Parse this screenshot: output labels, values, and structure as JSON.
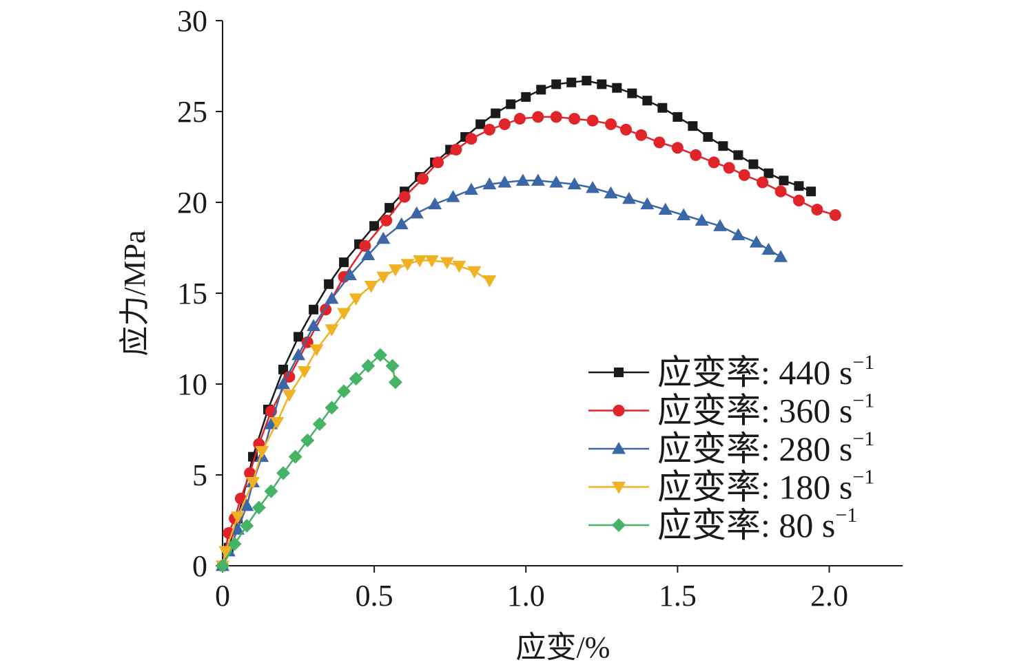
{
  "chart_data": {
    "type": "line",
    "xlabel": "应变/%",
    "ylabel": "应力/MPa",
    "xlim": [
      0,
      2.25
    ],
    "ylim": [
      0,
      30
    ],
    "xticks": [
      "0",
      "0.5",
      "1.0",
      "1.5",
      "2.0"
    ],
    "xtick_values": [
      0,
      0.5,
      1.0,
      1.5,
      2.0
    ],
    "yticks": [
      "0",
      "5",
      "10",
      "15",
      "20",
      "25",
      "30"
    ],
    "ytick_values": [
      0,
      5,
      10,
      15,
      20,
      25,
      30
    ],
    "grid": false,
    "legend_position": "bottom-right",
    "series": [
      {
        "name": "应变率: 440 s",
        "sup": "−1",
        "color": "#1a1a1a",
        "marker": "square",
        "points": [
          [
            0,
            0
          ],
          [
            0.02,
            1.0
          ],
          [
            0.05,
            2.6
          ],
          [
            0.1,
            6.0
          ],
          [
            0.15,
            8.6
          ],
          [
            0.2,
            10.8
          ],
          [
            0.25,
            12.6
          ],
          [
            0.3,
            14.1
          ],
          [
            0.35,
            15.5
          ],
          [
            0.4,
            16.7
          ],
          [
            0.45,
            17.7
          ],
          [
            0.5,
            18.7
          ],
          [
            0.55,
            19.7
          ],
          [
            0.6,
            20.6
          ],
          [
            0.65,
            21.4
          ],
          [
            0.7,
            22.2
          ],
          [
            0.75,
            22.9
          ],
          [
            0.8,
            23.6
          ],
          [
            0.85,
            24.3
          ],
          [
            0.9,
            24.9
          ],
          [
            0.95,
            25.4
          ],
          [
            1.0,
            25.8
          ],
          [
            1.05,
            26.2
          ],
          [
            1.1,
            26.5
          ],
          [
            1.15,
            26.6
          ],
          [
            1.2,
            26.7
          ],
          [
            1.25,
            26.5
          ],
          [
            1.3,
            26.3
          ],
          [
            1.35,
            26.0
          ],
          [
            1.4,
            25.6
          ],
          [
            1.45,
            25.2
          ],
          [
            1.5,
            24.7
          ],
          [
            1.55,
            24.2
          ],
          [
            1.6,
            23.6
          ],
          [
            1.65,
            23.1
          ],
          [
            1.7,
            22.6
          ],
          [
            1.75,
            22.1
          ],
          [
            1.8,
            21.6
          ],
          [
            1.85,
            21.2
          ],
          [
            1.9,
            20.9
          ],
          [
            1.94,
            20.6
          ]
        ]
      },
      {
        "name": "应变率: 360 s",
        "sup": "−1",
        "color": "#e0242a",
        "marker": "circle",
        "points": [
          [
            0,
            0
          ],
          [
            0.02,
            1.8
          ],
          [
            0.04,
            2.6
          ],
          [
            0.06,
            3.7
          ],
          [
            0.09,
            5.1
          ],
          [
            0.12,
            6.7
          ],
          [
            0.16,
            8.5
          ],
          [
            0.22,
            10.4
          ],
          [
            0.28,
            12.3
          ],
          [
            0.34,
            14.1
          ],
          [
            0.4,
            15.9
          ],
          [
            0.47,
            17.6
          ],
          [
            0.54,
            19.0
          ],
          [
            0.6,
            20.3
          ],
          [
            0.66,
            21.3
          ],
          [
            0.71,
            22.2
          ],
          [
            0.77,
            22.9
          ],
          [
            0.82,
            23.5
          ],
          [
            0.88,
            24.0
          ],
          [
            0.93,
            24.3
          ],
          [
            0.98,
            24.6
          ],
          [
            1.04,
            24.7
          ],
          [
            1.1,
            24.7
          ],
          [
            1.16,
            24.6
          ],
          [
            1.22,
            24.5
          ],
          [
            1.28,
            24.3
          ],
          [
            1.33,
            24.0
          ],
          [
            1.38,
            23.7
          ],
          [
            1.44,
            23.3
          ],
          [
            1.5,
            23.0
          ],
          [
            1.56,
            22.6
          ],
          [
            1.62,
            22.2
          ],
          [
            1.67,
            21.9
          ],
          [
            1.72,
            21.5
          ],
          [
            1.78,
            21.1
          ],
          [
            1.84,
            20.6
          ],
          [
            1.9,
            20.1
          ],
          [
            1.96,
            19.6
          ],
          [
            2.02,
            19.3
          ]
        ]
      },
      {
        "name": "应变率: 280 s",
        "sup": "−1",
        "color": "#3c67a6",
        "marker": "triangle-up",
        "points": [
          [
            0,
            0
          ],
          [
            0.02,
            0.8
          ],
          [
            0.05,
            2.0
          ],
          [
            0.08,
            3.3
          ],
          [
            0.1,
            4.6
          ],
          [
            0.13,
            6.0
          ],
          [
            0.16,
            7.8
          ],
          [
            0.2,
            10.0
          ],
          [
            0.25,
            11.6
          ],
          [
            0.3,
            13.2
          ],
          [
            0.36,
            14.7
          ],
          [
            0.42,
            16.0
          ],
          [
            0.48,
            17.1
          ],
          [
            0.53,
            18.0
          ],
          [
            0.59,
            18.8
          ],
          [
            0.64,
            19.4
          ],
          [
            0.7,
            19.9
          ],
          [
            0.76,
            20.3
          ],
          [
            0.82,
            20.7
          ],
          [
            0.88,
            21.0
          ],
          [
            0.93,
            21.1
          ],
          [
            0.99,
            21.2
          ],
          [
            1.04,
            21.2
          ],
          [
            1.1,
            21.1
          ],
          [
            1.16,
            21.0
          ],
          [
            1.22,
            20.8
          ],
          [
            1.28,
            20.5
          ],
          [
            1.34,
            20.2
          ],
          [
            1.4,
            19.9
          ],
          [
            1.46,
            19.6
          ],
          [
            1.52,
            19.3
          ],
          [
            1.58,
            19.0
          ],
          [
            1.64,
            18.7
          ],
          [
            1.7,
            18.2
          ],
          [
            1.76,
            17.8
          ],
          [
            1.8,
            17.4
          ],
          [
            1.84,
            17.0
          ]
        ]
      },
      {
        "name": "应变率: 180 s",
        "sup": "−1",
        "color": "#f0b123",
        "marker": "triangle-down",
        "points": [
          [
            0,
            0
          ],
          [
            0.01,
            0.8
          ],
          [
            0.05,
            2.7
          ],
          [
            0.1,
            4.6
          ],
          [
            0.13,
            6.3
          ],
          [
            0.18,
            7.9
          ],
          [
            0.22,
            9.4
          ],
          [
            0.27,
            10.7
          ],
          [
            0.31,
            11.9
          ],
          [
            0.36,
            13.0
          ],
          [
            0.4,
            13.9
          ],
          [
            0.44,
            14.7
          ],
          [
            0.49,
            15.4
          ],
          [
            0.53,
            15.9
          ],
          [
            0.57,
            16.3
          ],
          [
            0.61,
            16.6
          ],
          [
            0.65,
            16.8
          ],
          [
            0.69,
            16.8
          ],
          [
            0.74,
            16.7
          ],
          [
            0.78,
            16.5
          ],
          [
            0.83,
            16.2
          ],
          [
            0.88,
            15.7
          ]
        ]
      },
      {
        "name": "应变率: 80 s",
        "sup": "−1",
        "color": "#44b366",
        "marker": "diamond",
        "points": [
          [
            0,
            0
          ],
          [
            0.04,
            1.2
          ],
          [
            0.08,
            2.2
          ],
          [
            0.12,
            3.2
          ],
          [
            0.16,
            4.1
          ],
          [
            0.2,
            5.1
          ],
          [
            0.24,
            6.0
          ],
          [
            0.28,
            6.9
          ],
          [
            0.32,
            7.8
          ],
          [
            0.36,
            8.7
          ],
          [
            0.4,
            9.6
          ],
          [
            0.44,
            10.3
          ],
          [
            0.48,
            11.0
          ],
          [
            0.52,
            11.6
          ],
          [
            0.56,
            11.0
          ],
          [
            0.57,
            10.1
          ]
        ]
      }
    ]
  }
}
